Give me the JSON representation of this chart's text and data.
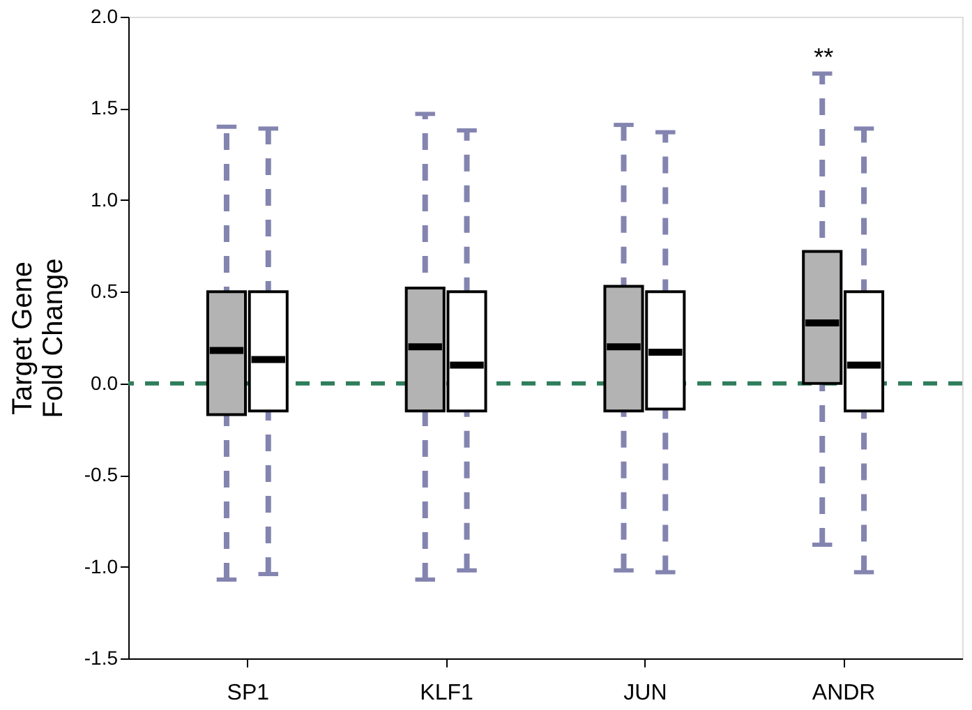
{
  "chart_data": {
    "type": "box",
    "ylabel": "Target Gene\nFold Change",
    "categories": [
      "SP1",
      "KLF1",
      "JUN",
      "ANDR"
    ],
    "series": [
      {
        "color": "#b3b3b3",
        "boxes": [
          {
            "low": -1.07,
            "q1": -0.17,
            "median": 0.18,
            "q3": 0.5,
            "high": 1.4
          },
          {
            "low": -1.07,
            "q1": -0.15,
            "median": 0.2,
            "q3": 0.52,
            "high": 1.47
          },
          {
            "low": -1.02,
            "q1": -0.15,
            "median": 0.2,
            "q3": 0.53,
            "high": 1.41
          },
          {
            "low": -0.88,
            "q1": 0.0,
            "median": 0.33,
            "q3": 0.72,
            "high": 1.69
          }
        ]
      },
      {
        "color": "#ffffff",
        "boxes": [
          {
            "low": -1.04,
            "q1": -0.15,
            "median": 0.13,
            "q3": 0.5,
            "high": 1.39
          },
          {
            "low": -1.02,
            "q1": -0.15,
            "median": 0.1,
            "q3": 0.5,
            "high": 1.38
          },
          {
            "low": -1.03,
            "q1": -0.14,
            "median": 0.17,
            "q3": 0.5,
            "high": 1.37
          },
          {
            "low": -1.03,
            "q1": -0.15,
            "median": 0.1,
            "q3": 0.5,
            "high": 1.39
          }
        ]
      }
    ],
    "ylim": [
      -1.5,
      2.0
    ],
    "yticks": [
      {
        "value": -1.5,
        "label": "-1.5"
      },
      {
        "value": -1.0,
        "label": "-1.0"
      },
      {
        "value": -0.5,
        "label": "-0.5"
      },
      {
        "value": 0.0,
        "label": "0.0"
      },
      {
        "value": 0.5,
        "label": "0.5"
      },
      {
        "value": 1.0,
        "label": "1.0"
      },
      {
        "value": 1.5,
        "label": "1.5"
      },
      {
        "value": 2.0,
        "label": "2.0"
      }
    ],
    "ref_lines": [
      {
        "axis": "y",
        "value": 0.0,
        "color": "#2e7d5b",
        "line_style": "dashed"
      }
    ],
    "annotations": [
      "**"
    ],
    "grid": false
  }
}
